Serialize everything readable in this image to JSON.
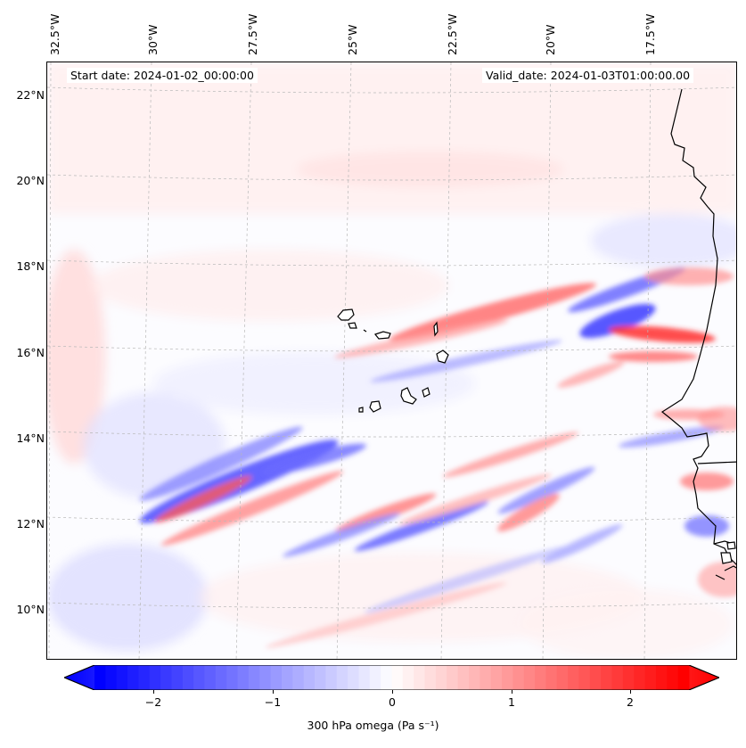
{
  "map": {
    "start_date": "Start date: 2024-01-02_00:00:00",
    "valid_date": "Valid_date: 2024-01-03T01:00:00.00",
    "lon_labels": [
      "32.5°W",
      "30°W",
      "27.5°W",
      "25°W",
      "22.5°W",
      "20°W",
      "17.5°W"
    ],
    "lat_labels": [
      "22°N",
      "20°N",
      "18°N",
      "16°N",
      "14°N",
      "12°N",
      "10°N"
    ],
    "colors": {
      "negative": "#0000ff",
      "neutral": "#ffffff",
      "positive": "#ff0000",
      "coast": "#000000",
      "grid": "#b0b0b0"
    }
  },
  "colorbar": {
    "label": "300 hPa omega (Pa s⁻¹)",
    "ticks": [
      "−2",
      "−1",
      "0",
      "1",
      "2"
    ],
    "range": [
      -2.7,
      2.7
    ],
    "levels": 54
  }
}
